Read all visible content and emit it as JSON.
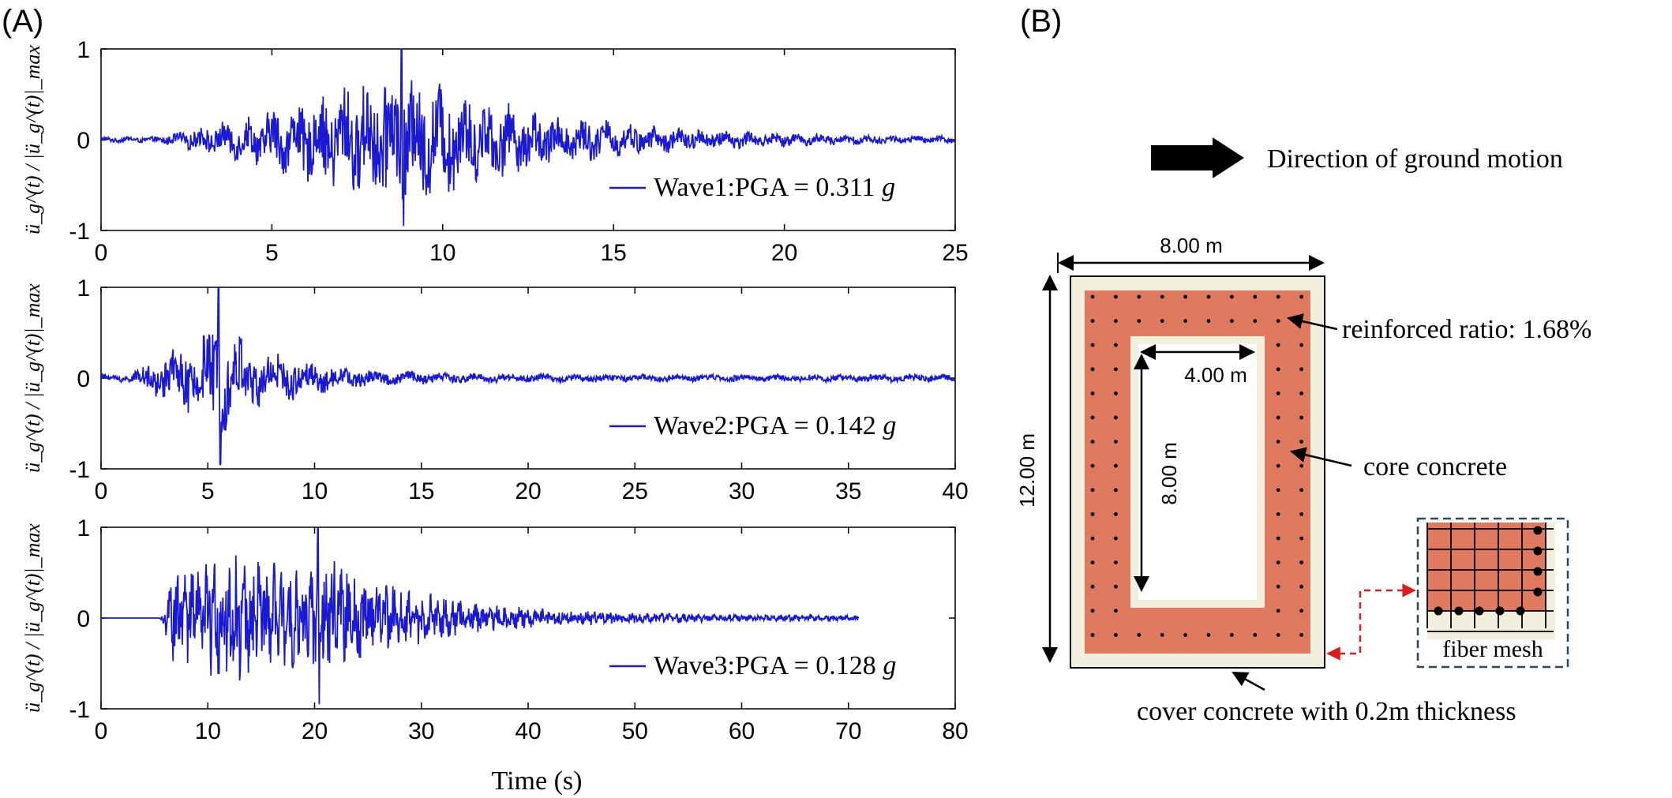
{
  "panel_labels": {
    "a": "(A)",
    "b": "(B)"
  },
  "chart_data": [
    {
      "type": "line",
      "series": [
        {
          "name": "Wave1:PGA = 0.311 g",
          "color": "#1a1ad6"
        }
      ],
      "legend_label": "Wave1:PGA = 0.311",
      "legend_unit": "g",
      "duration": 25,
      "peak_time": 8.8,
      "xlim": [
        0,
        25
      ],
      "ylim": [
        -1,
        1
      ],
      "x_ticks": [
        "0",
        "5",
        "10",
        "15",
        "20",
        "25"
      ],
      "y_ticks": [
        "1",
        "0",
        "-1"
      ],
      "ylabel": "ü_g^(t) / |ü_g^(t)|_max",
      "legend_position": "lower-right"
    },
    {
      "type": "line",
      "series": [
        {
          "name": "Wave2:PGA = 0.142 g",
          "color": "#1a1ad6"
        }
      ],
      "legend_label": "Wave2:PGA = 0.142",
      "legend_unit": "g",
      "duration": 40,
      "peak_time": 5.5,
      "xlim": [
        0,
        40
      ],
      "ylim": [
        -1,
        1
      ],
      "x_ticks": [
        "0",
        "5",
        "10",
        "15",
        "20",
        "25",
        "30",
        "35",
        "40"
      ],
      "y_ticks": [
        "1",
        "0",
        "-1"
      ],
      "ylabel": "ü_g^(t) / |ü_g^(t)|_max",
      "legend_position": "lower-right"
    },
    {
      "type": "line",
      "series": [
        {
          "name": "Wave3:PGA = 0.128 g",
          "color": "#1a1ad6"
        }
      ],
      "legend_label": "Wave3:PGA = 0.128",
      "legend_unit": "g",
      "duration": 71,
      "peak_time": 20.3,
      "xlim": [
        0,
        80
      ],
      "ylim": [
        -1,
        1
      ],
      "x_ticks": [
        "0",
        "10",
        "20",
        "30",
        "40",
        "50",
        "60",
        "70",
        "80"
      ],
      "y_ticks": [
        "1",
        "0",
        "-1"
      ],
      "ylabel": "ü_g^(t) / |ü_g^(t)|_max",
      "xlabel": "Time (s)",
      "legend_position": "lower-right"
    }
  ],
  "section": {
    "direction_label": "Direction of ground motion",
    "width_label": "8.00 m",
    "height_label": "12.00 m",
    "hole_width_label": "4.00 m",
    "hole_height_label": "8.00 m",
    "reinforced_label": "reinforced ratio: 1.68%",
    "core_label": "core concrete",
    "cover_label": "cover concrete with 0.2m thickness",
    "mesh_label": "fiber mesh",
    "colors": {
      "core": "#e07a5f",
      "cover": "#f3efdf",
      "mesh_border": "#2e4a5a",
      "link_arrow": "#e01b1b"
    }
  }
}
